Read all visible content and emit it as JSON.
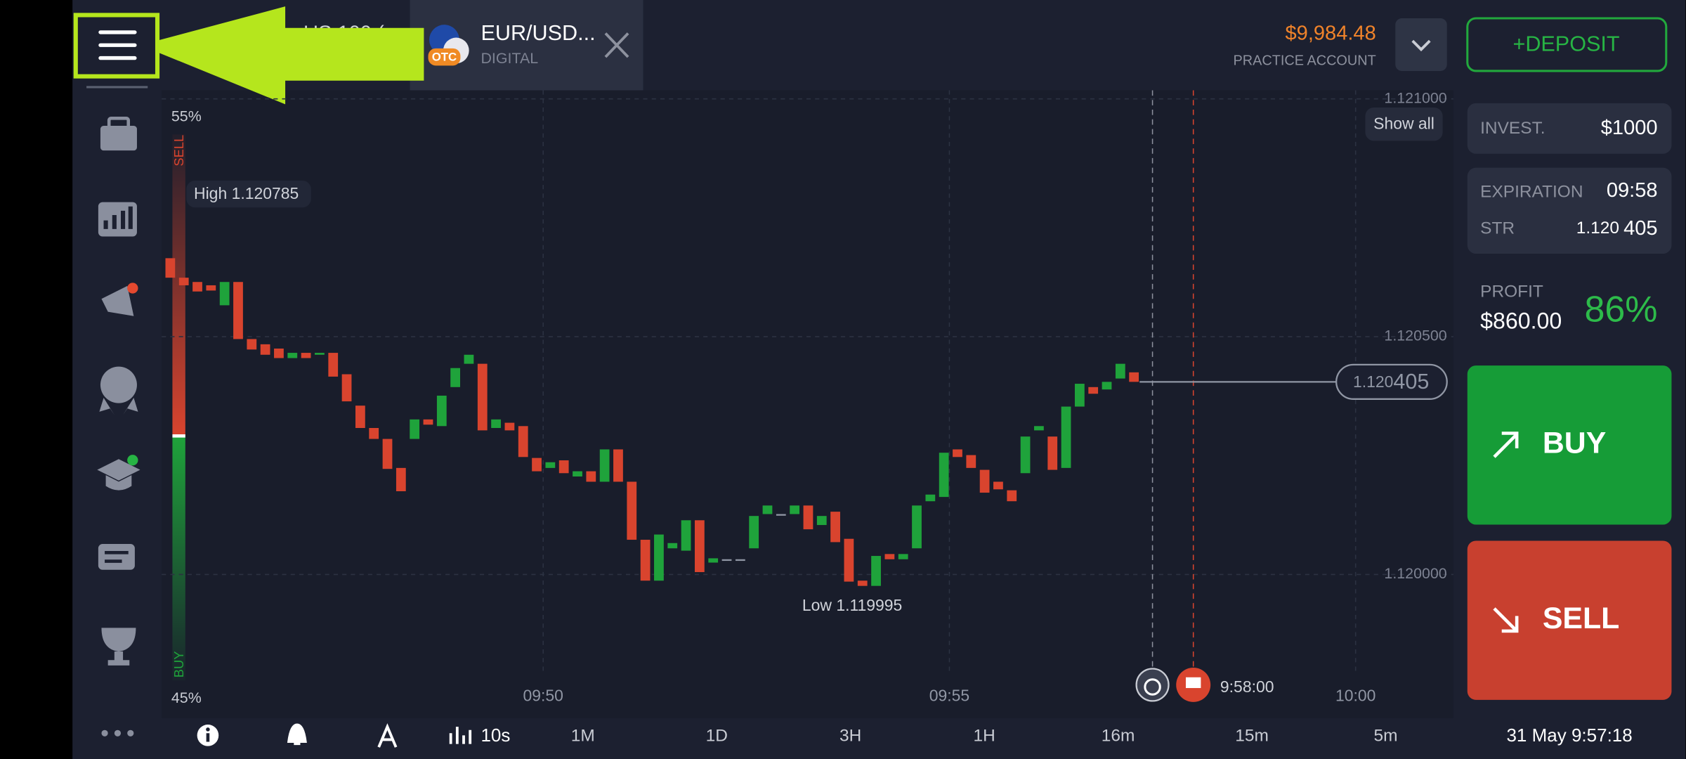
{
  "top_bar": {
    "hidden_tab": "US 100 (",
    "asset": "EUR/USD...",
    "asset_type": "DIGITAL",
    "badge": "OTC",
    "balance": "$9,984.48",
    "account": "PRACTICE ACCOUNT",
    "deposit": "+DEPOSIT"
  },
  "chart": {
    "type": "candlestick",
    "sentiment": {
      "sell_pct": "55%",
      "sell": "SELL",
      "buy_pct": "45%",
      "buy": "BUY"
    },
    "show_all": "Show all",
    "high_label": "High 1.120785",
    "low_label": "Low 1.119995",
    "expiry_time": "9:58:00",
    "xticks": [
      "09:50",
      "09:55",
      "10:00"
    ],
    "ylim": [
      1.119716,
      1.121018
    ],
    "yticks": [
      {
        "value": 1.121,
        "label": "1.121000"
      },
      {
        "value": 1.1205,
        "label": "1.120500"
      },
      {
        "value": 1.12,
        "label": "1.120000"
      }
    ],
    "grid": true,
    "up_color": "#1fa33b",
    "down_color": "#d9442e",
    "open": [
      1.120665,
      1.120624,
      1.120615,
      1.120608,
      1.120566,
      1.120615,
      1.120495,
      1.120484,
      1.120475,
      1.120455,
      1.120466,
      1.120462,
      1.120466,
      1.120421,
      1.120355,
      1.120308,
      1.120285,
      1.120224,
      1.120285,
      1.120326,
      1.120312,
      1.120394,
      1.120443,
      1.120443,
      1.120308,
      1.120319,
      1.120312,
      1.120245,
      1.120224,
      1.12024,
      1.120206,
      1.120217,
      1.120195,
      1.120263,
      1.120195,
      1.120073,
      1.119987,
      1.120055,
      1.12005,
      1.120114,
      1.120025,
      1.120032,
      1.120032,
      1.120055,
      1.120127,
      1.120127,
      1.120127,
      1.120145,
      1.120104,
      1.120132,
      1.120075,
      1.119987,
      1.119976,
      1.120043,
      1.120032,
      1.120055,
      1.120154,
      1.120163,
      1.120263,
      1.120251,
      1.12022,
      1.120195,
      1.120177,
      1.120213,
      1.120303,
      1.12029,
      1.120224,
      1.120353,
      1.120394,
      1.120389,
      1.120412,
      1.120425
    ],
    "close": [
      1.120624,
      1.120608,
      1.120595,
      1.120597,
      1.120615,
      1.120495,
      1.120473,
      1.120462,
      1.120455,
      1.120466,
      1.120455,
      1.120466,
      1.120416,
      1.120364,
      1.120308,
      1.120285,
      1.120222,
      1.120175,
      1.120326,
      1.120315,
      1.120376,
      1.120434,
      1.120462,
      1.120303,
      1.120326,
      1.120303,
      1.120247,
      1.120217,
      1.120236,
      1.120213,
      1.120217,
      1.120195,
      1.120263,
      1.120195,
      1.120073,
      1.119987,
      1.120084,
      1.120066,
      1.120114,
      1.120005,
      1.120034,
      1.120032,
      1.120032,
      1.120123,
      1.120145,
      1.120127,
      1.120145,
      1.120095,
      1.120123,
      1.120068,
      1.119985,
      1.119976,
      1.120039,
      1.120032,
      1.120043,
      1.120145,
      1.120168,
      1.120256,
      1.120247,
      1.120224,
      1.120172,
      1.120179,
      1.120154,
      1.12029,
      1.120312,
      1.12022,
      1.120353,
      1.120401,
      1.12038,
      1.120405,
      1.120443,
      1.120405
    ],
    "current_price": {
      "value": 1.120405,
      "label_main": "1.120",
      "label_tail": "405"
    }
  },
  "trade_panel": {
    "invest_label": "INVEST.",
    "invest_value": "$1000",
    "expiration_label": "EXPIRATION",
    "expiration_value": "09:58",
    "strike_label": "STR",
    "strike_main": "1.120",
    "strike_tail": "405",
    "profit_label": "PROFIT",
    "profit_value": "$860.00",
    "profit_pct": "86%",
    "buy": "BUY",
    "sell": "SELL"
  },
  "bottom_bar": {
    "interval": "10s",
    "periods": [
      "1M",
      "1D",
      "3H",
      "1H",
      "16m",
      "15m",
      "5m"
    ],
    "datetime": "31 May 9:57:18"
  }
}
